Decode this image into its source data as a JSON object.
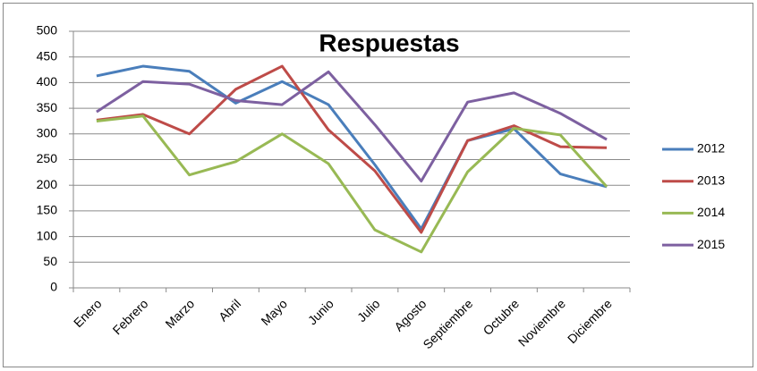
{
  "chart_data": {
    "type": "line",
    "title": "Respuestas",
    "categories": [
      "Enero",
      "Febrero",
      "Marzo",
      "Abril",
      "Mayo",
      "Junio",
      "Julio",
      "Agosto",
      "Septiembre",
      "Octubre",
      "Noviembre",
      "Diciembre"
    ],
    "series": [
      {
        "name": "2012",
        "color": "#4a7ebb",
        "values": [
          413,
          432,
          422,
          360,
          402,
          357,
          240,
          115,
          287,
          310,
          222,
          197
        ]
      },
      {
        "name": "2013",
        "color": "#be4b48",
        "values": [
          327,
          338,
          300,
          387,
          432,
          308,
          228,
          108,
          287,
          316,
          275,
          273
        ]
      },
      {
        "name": "2014",
        "color": "#98b954",
        "values": [
          325,
          335,
          220,
          246,
          300,
          242,
          113,
          70,
          226,
          311,
          298,
          197
        ]
      },
      {
        "name": "2015",
        "color": "#7d60a0",
        "values": [
          343,
          402,
          397,
          365,
          357,
          421,
          318,
          208,
          362,
          380,
          340,
          289
        ]
      }
    ],
    "ylim": [
      0,
      500
    ],
    "yticks": [
      0,
      50,
      100,
      150,
      200,
      250,
      300,
      350,
      400,
      450,
      500
    ],
    "grid": true,
    "legend": "right"
  }
}
